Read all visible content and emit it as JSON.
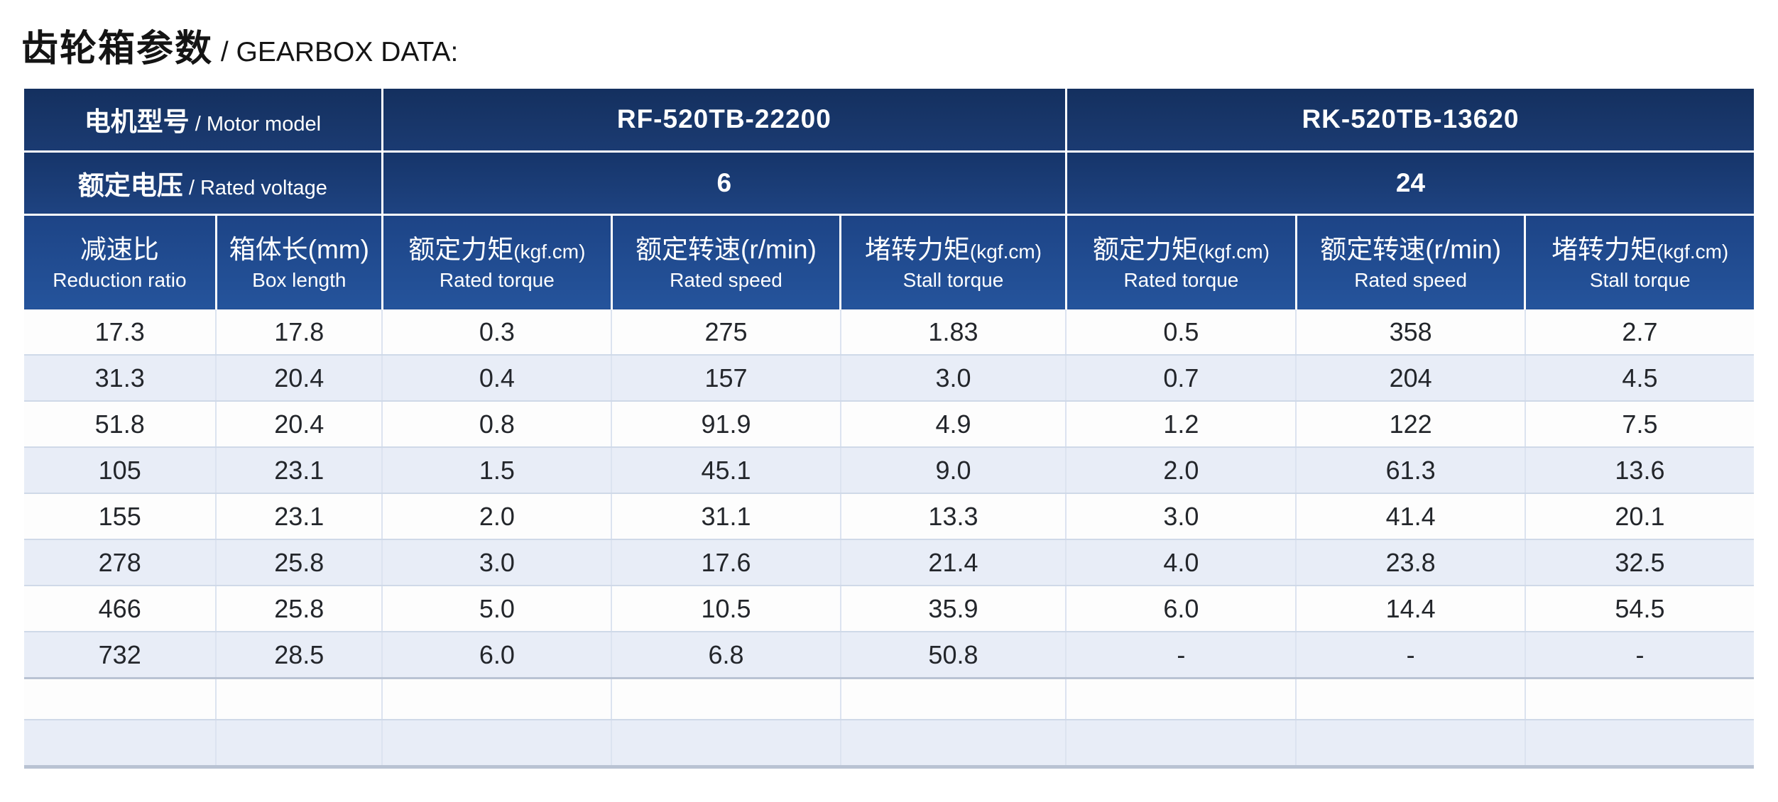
{
  "title": {
    "zh": "齿轮箱参数",
    "en": " / GEARBOX DATA:"
  },
  "table": {
    "motor_model_label": {
      "zh": "电机型号",
      "en": " / Motor model"
    },
    "rated_voltage_label": {
      "zh": "额定电压",
      "en": " / Rated voltage"
    },
    "models": [
      {
        "name": "RF-520TB-22200",
        "voltage": "6"
      },
      {
        "name": "RK-520TB-13620",
        "voltage": "24"
      }
    ],
    "columns": [
      {
        "zh": "减速比",
        "unit": "",
        "en": "Reduction ratio"
      },
      {
        "zh": "箱体长(mm)",
        "unit": "",
        "en": "Box length"
      },
      {
        "zh": "额定力矩",
        "unit": "(kgf.cm)",
        "en": "Rated torque"
      },
      {
        "zh": "额定转速(r/min)",
        "unit": "",
        "en": "Rated speed"
      },
      {
        "zh": "堵转力矩",
        "unit": "(kgf.cm)",
        "en": "Stall torque"
      },
      {
        "zh": "额定力矩",
        "unit": "(kgf.cm)",
        "en": "Rated torque"
      },
      {
        "zh": "额定转速(r/min)",
        "unit": "",
        "en": "Rated speed"
      },
      {
        "zh": "堵转力矩",
        "unit": "(kgf.cm)",
        "en": "Stall torque"
      }
    ],
    "rows": [
      [
        "17.3",
        "17.8",
        "0.3",
        "275",
        "1.83",
        "0.5",
        "358",
        "2.7"
      ],
      [
        "31.3",
        "20.4",
        "0.4",
        "157",
        "3.0",
        "0.7",
        "204",
        "4.5"
      ],
      [
        "51.8",
        "20.4",
        "0.8",
        "91.9",
        "4.9",
        "1.2",
        "122",
        "7.5"
      ],
      [
        "105",
        "23.1",
        "1.5",
        "45.1",
        "9.0",
        "2.0",
        "61.3",
        "13.6"
      ],
      [
        "155",
        "23.1",
        "2.0",
        "31.1",
        "13.3",
        "3.0",
        "41.4",
        "20.1"
      ],
      [
        "278",
        "25.8",
        "3.0",
        "17.6",
        "21.4",
        "4.0",
        "23.8",
        "32.5"
      ],
      [
        "466",
        "25.8",
        "5.0",
        "10.5",
        "35.9",
        "6.0",
        "14.4",
        "54.5"
      ],
      [
        "732",
        "28.5",
        "6.0",
        "6.8",
        "50.8",
        "-",
        "-",
        "-"
      ],
      [
        "",
        "",
        "",
        "",
        "",
        "",
        "",
        ""
      ],
      [
        "",
        "",
        "",
        "",
        "",
        "",
        "",
        ""
      ]
    ]
  },
  "colors": {
    "header_navy_top": "#14305f",
    "header_navy_bottom": "#25549c",
    "header_text": "#ffffff",
    "alt_row": "#e8edf7",
    "grid_line": "#cfd9e8",
    "section_line": "#b9c3d3",
    "body_text": "#23262b"
  }
}
